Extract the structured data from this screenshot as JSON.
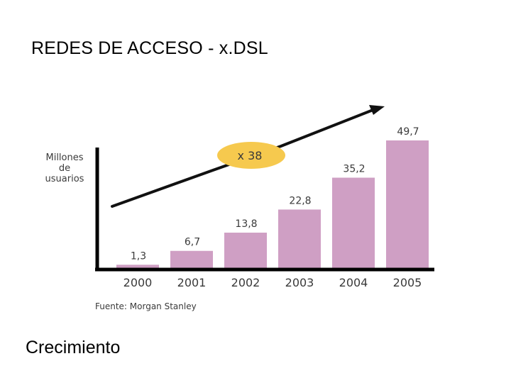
{
  "slide": {
    "title": "REDES DE ACCESO - x.DSL",
    "caption": "Crecimiento"
  },
  "chart_data": {
    "type": "bar",
    "title": "",
    "ylabel": "Millones de usuarios",
    "ylabel_lines": [
      "Millones",
      "de",
      "usuarios"
    ],
    "xlabel": "",
    "categories": [
      "2000",
      "2001",
      "2002",
      "2003",
      "2004",
      "2005"
    ],
    "values": [
      1.3,
      6.7,
      13.8,
      22.8,
      35.2,
      49.7
    ],
    "value_labels": [
      "1,3",
      "6,7",
      "13,8",
      "22,8",
      "35,2",
      "49,7"
    ],
    "ylim": [
      0,
      49.7
    ],
    "grid": false,
    "annotation": "x 38",
    "source": "Fuente: Morgan Stanley",
    "colors": {
      "bar": "#cf9fc4",
      "annotation_fill": "#f6c94e",
      "axis": "#000000"
    }
  }
}
